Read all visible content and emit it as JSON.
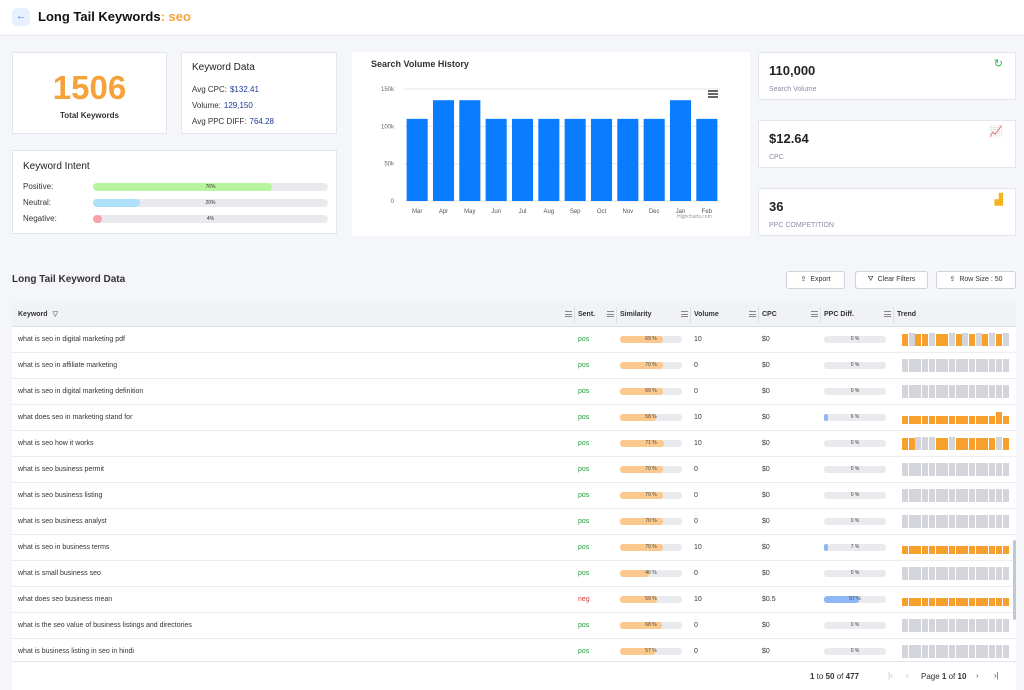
{
  "header": {
    "title": "Long Tail Keywords",
    "keyword": ": seo"
  },
  "total": {
    "count": "1506",
    "label": "Total Keywords"
  },
  "keyword_data": {
    "title": "Keyword Data",
    "avg_cpc_label": "Avg CPC:",
    "avg_cpc": "$132.41",
    "volume_label": "Volume:",
    "volume": "129,150",
    "avg_ppc_label": "Avg PPC DIFF:",
    "avg_ppc": "764.28"
  },
  "intent": {
    "title": "Keyword Intent",
    "items": [
      {
        "label": "Positive:",
        "pct_text": "76%",
        "value": 76,
        "color": "#b6f59e"
      },
      {
        "label": "Neutral:",
        "pct_text": "20%",
        "value": 20,
        "color": "#aee0fb"
      },
      {
        "label": "Negative:",
        "pct_text": "4%",
        "value": 4,
        "color": "#f7a3a7"
      }
    ]
  },
  "chart_data": {
    "type": "bar",
    "title": "Search Volume History",
    "categories": [
      "Mar",
      "Apr",
      "May",
      "Jun",
      "Jul",
      "Aug",
      "Sep",
      "Oct",
      "Nov",
      "Dec",
      "Jan",
      "Feb"
    ],
    "values": [
      110000,
      135000,
      135000,
      110000,
      110000,
      110000,
      110000,
      110000,
      110000,
      110000,
      135000,
      110000
    ],
    "yticks": [
      {
        "v": 0,
        "label": "0"
      },
      {
        "v": 50000,
        "label": "50k"
      },
      {
        "v": 100000,
        "label": "100k"
      },
      {
        "v": 150000,
        "label": "150k"
      }
    ],
    "ylim": [
      0,
      150000
    ],
    "color": "#0a7cff",
    "credits": "Highcharts.com"
  },
  "stats": [
    {
      "value": "110,000",
      "label": "Search Volume",
      "icon": "refresh-icon",
      "icon_char": "↻",
      "icon_color": "#27b84a"
    },
    {
      "value": "$12.64",
      "label": "CPC",
      "icon": "line-chart-icon",
      "icon_char": "📈",
      "icon_color": "#e04747"
    },
    {
      "value": "36",
      "label": "PPC COMPETITION",
      "icon": "bar-chart-icon",
      "icon_char": "▟",
      "icon_color": "#f2b51d"
    }
  ],
  "table_section": {
    "title": "Long Tail Keyword Data",
    "export_label": "Export",
    "clear_label": "Clear Filters",
    "rowsize_label": "Row Size : 50"
  },
  "columns": [
    "Keyword",
    "Sent.",
    "Similarity",
    "Volume",
    "CPC",
    "PPC Diff.",
    "Trend"
  ],
  "rows": [
    {
      "keyword": "what is seo in digital marketing pdf",
      "sent": "pos",
      "sim": 69,
      "sim_text": "69 %",
      "volume": "10",
      "cpc": "$0",
      "ppc": 0,
      "ppc_text": "0 %",
      "trend": [
        1,
        0,
        1,
        1,
        0,
        1,
        1,
        0,
        1,
        0,
        1,
        0,
        1,
        0,
        1,
        0
      ]
    },
    {
      "keyword": "what is seo in affiliate marketing",
      "sent": "pos",
      "sim": 70,
      "sim_text": "70 %",
      "volume": "0",
      "cpc": "$0",
      "ppc": 0,
      "ppc_text": "0 %",
      "trend": [
        0,
        0,
        0,
        0,
        0,
        0,
        0,
        0,
        0,
        0,
        0,
        0,
        0,
        0,
        0,
        0
      ]
    },
    {
      "keyword": "what is seo in digital marketing definition",
      "sent": "pos",
      "sim": 69,
      "sim_text": "69 %",
      "volume": "0",
      "cpc": "$0",
      "ppc": 0,
      "ppc_text": "0 %",
      "trend": [
        0,
        0,
        0,
        0,
        0,
        0,
        0,
        0,
        0,
        0,
        0,
        0,
        0,
        0,
        0,
        0
      ]
    },
    {
      "keyword": "what does seo in marketing stand for",
      "sent": "pos",
      "sim": 58,
      "sim_text": "58 %",
      "volume": "10",
      "cpc": "$0",
      "ppc": 6,
      "ppc_text": "6 %",
      "trend": [
        0.5,
        0.5,
        0.5,
        0.5,
        0.5,
        0.5,
        0.5,
        0.5,
        0.5,
        0.5,
        0.5,
        0.5,
        0.5,
        0.5,
        1,
        0.5
      ]
    },
    {
      "keyword": "what is seo how it works",
      "sent": "pos",
      "sim": 71,
      "sim_text": "71 %",
      "volume": "10",
      "cpc": "$0",
      "ppc": 0,
      "ppc_text": "0 %",
      "trend": [
        1,
        1,
        0,
        0,
        0,
        1,
        1,
        0,
        1,
        1,
        1,
        1,
        1,
        1,
        0,
        1
      ]
    },
    {
      "keyword": "what is seo business permit",
      "sent": "pos",
      "sim": 70,
      "sim_text": "70 %",
      "volume": "0",
      "cpc": "$0",
      "ppc": 0,
      "ppc_text": "0 %",
      "trend": [
        0,
        0,
        0,
        0,
        0,
        0,
        0,
        0,
        0,
        0,
        0,
        0,
        0,
        0,
        0,
        0
      ]
    },
    {
      "keyword": "what is seo business listing",
      "sent": "pos",
      "sim": 70,
      "sim_text": "70 %",
      "volume": "0",
      "cpc": "$0",
      "ppc": 0,
      "ppc_text": "0 %",
      "trend": [
        0,
        0,
        0,
        0,
        0,
        0,
        0,
        0,
        0,
        0,
        0,
        0,
        0,
        0,
        0,
        0
      ]
    },
    {
      "keyword": "what is seo business analyst",
      "sent": "pos",
      "sim": 70,
      "sim_text": "70 %",
      "volume": "0",
      "cpc": "$0",
      "ppc": 0,
      "ppc_text": "0 %",
      "trend": [
        0,
        0,
        0,
        0,
        0,
        0,
        0,
        0,
        0,
        0,
        0,
        0,
        0,
        0,
        0,
        0
      ]
    },
    {
      "keyword": "what is seo in business terms",
      "sent": "pos",
      "sim": 70,
      "sim_text": "70 %",
      "volume": "10",
      "cpc": "$0",
      "ppc": 7,
      "ppc_text": "7 %",
      "trend": [
        0.5,
        0.5,
        0.5,
        0.5,
        0.5,
        0.5,
        0.5,
        0.5,
        0.5,
        0.5,
        0.5,
        0.5,
        0.5,
        0.5,
        0.5,
        0.5
      ]
    },
    {
      "keyword": "what is small business seo",
      "sent": "pos",
      "sim": 46,
      "sim_text": "46 %",
      "volume": "0",
      "cpc": "$0",
      "ppc": 0,
      "ppc_text": "0 %",
      "trend": [
        0,
        0,
        0,
        0,
        0,
        0,
        0,
        0,
        0,
        0,
        0,
        0,
        0,
        0,
        0,
        0
      ]
    },
    {
      "keyword": "what does seo business mean",
      "sent": "neg",
      "sim": 59,
      "sim_text": "59 %",
      "volume": "10",
      "cpc": "$0.5",
      "ppc": 57,
      "ppc_text": "57 %",
      "trend": [
        0.5,
        0.5,
        0.5,
        0.5,
        0.5,
        0.5,
        0.5,
        0.5,
        0.5,
        0.5,
        0.5,
        0.5,
        0.5,
        0.5,
        0.5,
        0.5
      ]
    },
    {
      "keyword": "what is the seo value of business listings and directories",
      "sent": "pos",
      "sim": 68,
      "sim_text": "68 %",
      "volume": "0",
      "cpc": "$0",
      "ppc": 0,
      "ppc_text": "0 %",
      "trend": [
        0,
        0,
        0,
        0,
        0,
        0,
        0,
        0,
        0,
        0,
        0,
        0,
        0,
        0,
        0,
        0
      ]
    },
    {
      "keyword": "what is business listing in seo in hindi",
      "sent": "pos",
      "sim": 57,
      "sim_text": "57 %",
      "volume": "0",
      "cpc": "$0",
      "ppc": 0,
      "ppc_text": "0 %",
      "trend": [
        0,
        0,
        0,
        0,
        0,
        0,
        0,
        0,
        0,
        0,
        0,
        0,
        0,
        0,
        0,
        0
      ]
    }
  ],
  "pagination": {
    "from": "1",
    "to_word": "to",
    "to": "50",
    "of_word": "of",
    "total": "477",
    "page_word": "Page",
    "page": "1",
    "page_of": "of",
    "pages": "10"
  },
  "colors": {
    "orange": "#f6a23b",
    "sim_fill": "#fbc98d",
    "ppc_fill": "#8fb6f7",
    "trend_orange": "#f7a02d",
    "trend_grey": "#d3d5da"
  }
}
